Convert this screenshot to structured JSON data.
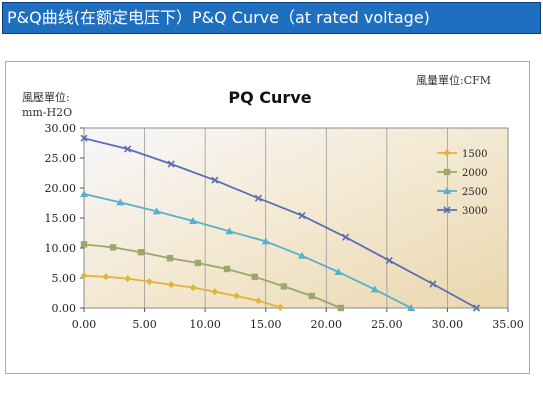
{
  "header": {
    "title": "P&Q曲线(在额定电压下）P&Q Curve（at rated voltage)"
  },
  "chart_data": {
    "type": "line",
    "title": "PQ Curve",
    "ylabel_line1": "風壓單位:",
    "ylabel_line2": "mm-H2O",
    "xlabel": "風量單位:CFM",
    "xlim": [
      0,
      35
    ],
    "ylim": [
      0,
      30
    ],
    "xticks": [
      "0.00",
      "5.00",
      "10.00",
      "15.00",
      "20.00",
      "25.00",
      "30.00",
      "35.00"
    ],
    "yticks": [
      "0.00",
      "5.00",
      "10.00",
      "15.00",
      "20.00",
      "25.00",
      "30.00"
    ],
    "grid": "vertical",
    "legend_position": "right",
    "series": [
      {
        "name": "1500",
        "color": "#e0b43c",
        "marker": "diamond",
        "points": [
          [
            0,
            5.4
          ],
          [
            1.8,
            5.2
          ],
          [
            3.6,
            4.9
          ],
          [
            5.4,
            4.4
          ],
          [
            7.2,
            3.9
          ],
          [
            9.0,
            3.4
          ],
          [
            10.8,
            2.7
          ],
          [
            12.6,
            2.0
          ],
          [
            14.4,
            1.2
          ],
          [
            16.2,
            0.1
          ]
        ]
      },
      {
        "name": "2000",
        "color": "#9aa86e",
        "marker": "square",
        "points": [
          [
            0,
            10.6
          ],
          [
            2.4,
            10.1
          ],
          [
            4.7,
            9.3
          ],
          [
            7.1,
            8.3
          ],
          [
            9.4,
            7.5
          ],
          [
            11.8,
            6.5
          ],
          [
            14.1,
            5.2
          ],
          [
            16.5,
            3.6
          ],
          [
            18.8,
            2.0
          ],
          [
            21.2,
            0.0
          ]
        ]
      },
      {
        "name": "2500",
        "color": "#5ab0cc",
        "marker": "triangle",
        "points": [
          [
            0,
            19.0
          ],
          [
            3.0,
            17.6
          ],
          [
            6.0,
            16.1
          ],
          [
            9.0,
            14.5
          ],
          [
            12.0,
            12.8
          ],
          [
            15.0,
            11.1
          ],
          [
            18.0,
            8.7
          ],
          [
            21.0,
            6.0
          ],
          [
            24.0,
            3.1
          ],
          [
            27.0,
            0.0
          ]
        ]
      },
      {
        "name": "3000",
        "color": "#5a6eb4",
        "marker": "x",
        "points": [
          [
            0,
            28.3
          ],
          [
            3.6,
            26.5
          ],
          [
            7.2,
            24.0
          ],
          [
            10.8,
            21.3
          ],
          [
            14.4,
            18.3
          ],
          [
            18.0,
            15.4
          ],
          [
            21.6,
            11.8
          ],
          [
            25.2,
            7.9
          ],
          [
            28.8,
            4.0
          ],
          [
            32.4,
            0.0
          ]
        ]
      }
    ]
  }
}
